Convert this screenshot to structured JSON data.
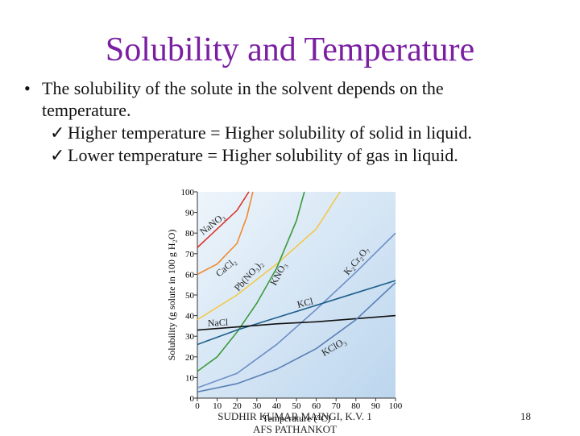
{
  "slide": {
    "title": "Solubility and Temperature",
    "bullet": "The solubility of the solute in the solvent depends on the temperature.",
    "points": [
      "Higher temperature = Higher solubility of solid in liquid.",
      "Lower temperature = Higher solubility of gas in liquid."
    ],
    "footer": [
      "SUDHIR KUMAR MAINGI, K.V. 1",
      "AFS PATHANKOT"
    ],
    "page": "18"
  },
  "chart_data": {
    "type": "line",
    "xlabel": "Temperature (°C)",
    "ylabel": "Solubility (g solute in 100 g H₂O)",
    "xlim": [
      0,
      100
    ],
    "ylim": [
      0,
      100
    ],
    "xticks": [
      0,
      10,
      20,
      30,
      40,
      50,
      60,
      70,
      80,
      90,
      100
    ],
    "yticks": [
      0,
      10,
      20,
      30,
      40,
      50,
      60,
      70,
      80,
      90,
      100
    ],
    "series": [
      {
        "name": "NaNO₃",
        "color": "#d9342b",
        "x": [
          0,
          10,
          20,
          26
        ],
        "values": [
          73,
          82,
          91,
          100
        ]
      },
      {
        "name": "CaCl₂",
        "color": "#f08a2e",
        "x": [
          0,
          10,
          20,
          25,
          28
        ],
        "values": [
          60,
          65,
          75,
          88,
          100
        ]
      },
      {
        "name": "Pb(NO₃)₂",
        "color": "#f2c84b",
        "x": [
          0,
          20,
          40,
          60,
          72
        ],
        "values": [
          38,
          50,
          65,
          82,
          100
        ]
      },
      {
        "name": "KNO₃",
        "color": "#3a9a3a",
        "x": [
          0,
          10,
          20,
          30,
          40,
          50,
          54
        ],
        "values": [
          13,
          20,
          32,
          46,
          63,
          86,
          100
        ]
      },
      {
        "name": "K₂Cr₂O₇",
        "color": "#6d8fc6",
        "x": [
          0,
          20,
          40,
          60,
          80,
          100
        ],
        "values": [
          5,
          12,
          26,
          43,
          61,
          80
        ]
      },
      {
        "name": "KCl",
        "color": "#1e5f8a",
        "x": [
          0,
          20,
          40,
          60,
          80,
          100
        ],
        "values": [
          26,
          33,
          39,
          45,
          51,
          57
        ]
      },
      {
        "name": "NaCl",
        "color": "#111111",
        "x": [
          0,
          20,
          40,
          60,
          80,
          100
        ],
        "values": [
          33,
          34.5,
          36,
          37,
          38.5,
          40
        ]
      },
      {
        "name": "KClO₃",
        "color": "#5a7fb5",
        "x": [
          0,
          20,
          40,
          60,
          80,
          100
        ],
        "values": [
          3,
          7,
          14,
          24,
          38,
          56
        ]
      }
    ]
  }
}
